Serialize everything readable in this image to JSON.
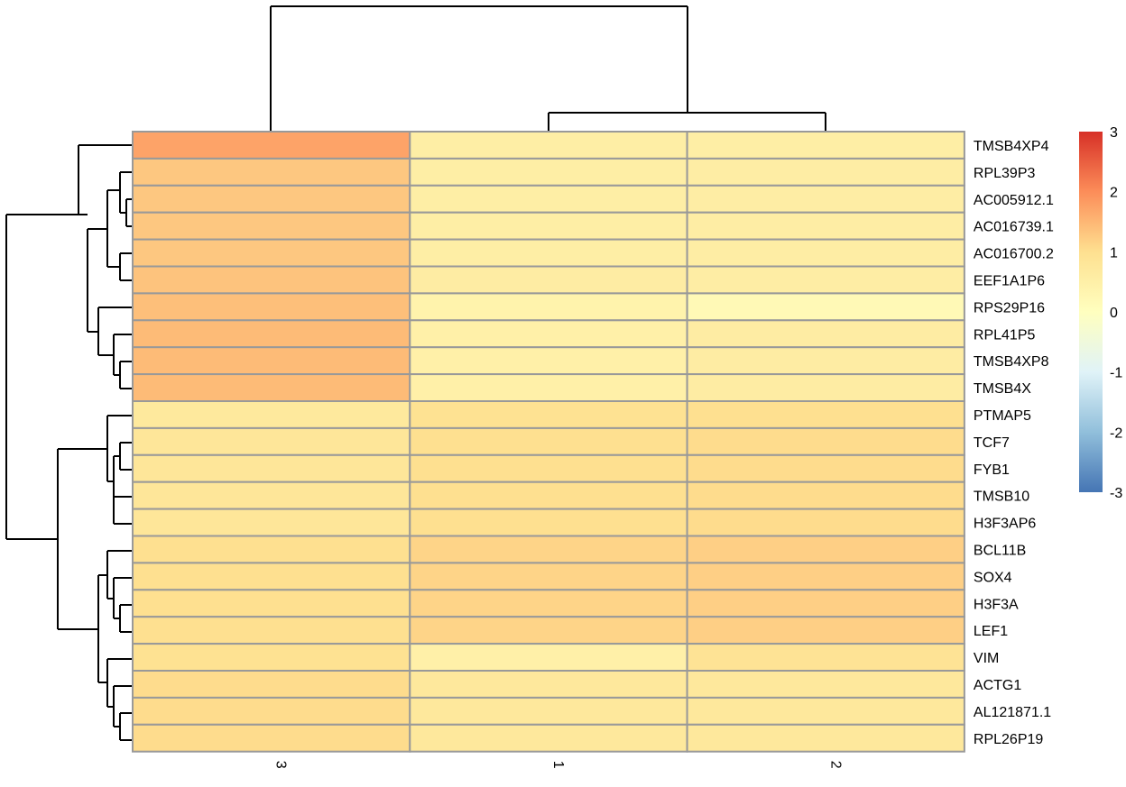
{
  "chart_data": {
    "type": "heatmap",
    "title": "",
    "xlabel": "",
    "ylabel": "",
    "columns": [
      "3",
      "1",
      "2"
    ],
    "rows": [
      "TMSB4XP4",
      "RPL39P3",
      "AC005912.1",
      "AC016739.1",
      "AC016700.2",
      "EEF1A1P6",
      "RPS29P16",
      "RPL41P5",
      "TMSB4XP8",
      "TMSB4X",
      "PTMAP5",
      "TCF7",
      "FYB1",
      "TMSB10",
      "H3F3AP6",
      "BCL11B",
      "SOX4",
      "H3F3A",
      "LEF1",
      "VIM",
      "ACTG1",
      "AL121871.1",
      "RPL26P19"
    ],
    "values": [
      [
        1.73,
        0.56,
        0.56
      ],
      [
        1.3,
        0.55,
        0.58
      ],
      [
        1.3,
        0.55,
        0.58
      ],
      [
        1.3,
        0.55,
        0.58
      ],
      [
        1.3,
        0.55,
        0.58
      ],
      [
        1.35,
        0.6,
        0.58
      ],
      [
        1.4,
        0.4,
        0.2
      ],
      [
        1.45,
        0.5,
        0.6
      ],
      [
        1.45,
        0.5,
        0.6
      ],
      [
        1.45,
        0.5,
        0.6
      ],
      [
        0.72,
        0.95,
        1.0
      ],
      [
        0.8,
        1.0,
        1.05
      ],
      [
        0.8,
        1.0,
        1.05
      ],
      [
        0.8,
        1.0,
        1.05
      ],
      [
        0.8,
        1.0,
        1.05
      ],
      [
        1.0,
        1.15,
        1.2
      ],
      [
        1.0,
        1.15,
        1.2
      ],
      [
        1.0,
        1.15,
        1.2
      ],
      [
        1.0,
        1.15,
        1.2
      ],
      [
        0.95,
        0.5,
        0.9
      ],
      [
        1.05,
        0.75,
        0.75
      ],
      [
        1.05,
        0.75,
        0.75
      ],
      [
        1.05,
        0.75,
        0.75
      ]
    ],
    "legend": {
      "placement": "right",
      "min": -3,
      "max": 3,
      "ticks": [
        3,
        2,
        1,
        0,
        -1,
        -2,
        -3
      ],
      "colors": [
        "#4575B4",
        "#91BFDB",
        "#E0F3F8",
        "#FFFFBF",
        "#FEE090",
        "#FC8D59",
        "#D73027"
      ]
    },
    "cell_border_color": "#999999"
  }
}
